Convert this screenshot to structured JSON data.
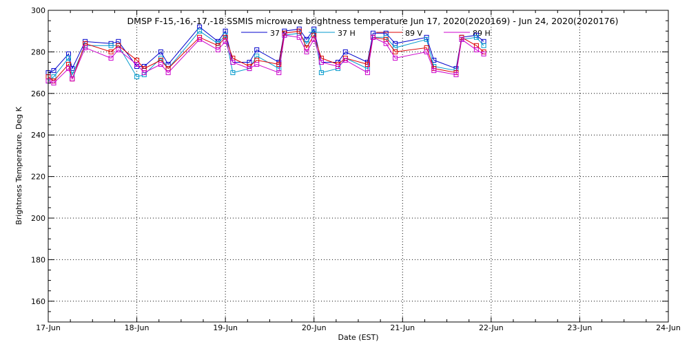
{
  "chart_data": {
    "type": "line",
    "title": "DMSP F-15,-16,-17,-18 SSMIS microwave brightness temperature Jun 17, 2020(2020169) - Jun 24, 2020(2020176)",
    "xlabel": "Date (EST)",
    "ylabel": "Brightness Temperature, Deg K",
    "xlim": [
      "2020-06-17",
      "2020-06-24"
    ],
    "ylim": [
      150,
      300
    ],
    "x_ticks": [
      "17-Jun",
      "18-Jun",
      "19-Jun",
      "20-Jun",
      "21-Jun",
      "22-Jun",
      "23-Jun",
      "24-Jun"
    ],
    "y_ticks": [
      "160",
      "180",
      "200",
      "220",
      "240",
      "260",
      "280",
      "300"
    ],
    "grid": true,
    "legend_position": "top",
    "x_times": [
      "2020-06-17 00:00",
      "2020-06-17 01:30",
      "2020-06-17 05:30",
      "2020-06-17 06:30",
      "2020-06-17 10:00",
      "2020-06-17 17:00",
      "2020-06-17 19:00",
      "2020-06-18 00:00",
      "2020-06-18 02:00",
      "2020-06-18 06:30",
      "2020-06-18 08:30",
      "2020-06-18 17:00",
      "2020-06-18 22:00",
      "2020-06-19 00:00",
      "2020-06-19 02:00",
      "2020-06-19 06:30",
      "2020-06-19 08:30",
      "2020-06-19 14:30",
      "2020-06-19 16:00",
      "2020-06-19 20:00",
      "2020-06-19 22:00",
      "2020-06-20 00:00",
      "2020-06-20 02:00",
      "2020-06-20 06:30",
      "2020-06-20 08:30",
      "2020-06-20 14:30",
      "2020-06-20 16:00",
      "2020-06-20 19:30",
      "2020-06-20 22:00",
      "2020-06-21 06:30",
      "2020-06-21 08:30",
      "2020-06-21 14:30",
      "2020-06-21 16:00",
      "2020-06-21 20:00",
      "2020-06-21 22:00"
    ],
    "series": [
      {
        "name": "37 V",
        "color": "#0000cc",
        "values": [
          270,
          271,
          279,
          272,
          285,
          284,
          285,
          273,
          273,
          280,
          274,
          292,
          285,
          290,
          275,
          275,
          281,
          275,
          290,
          291,
          286,
          291,
          275,
          275,
          280,
          275,
          289,
          289,
          284,
          287,
          276,
          272,
          287,
          288,
          285
        ]
      },
      {
        "name": "37 H",
        "color": "#0099cc",
        "values": [
          266,
          268,
          277,
          269,
          283,
          283,
          283,
          268,
          269,
          277,
          272,
          290,
          284,
          288,
          270,
          272,
          278,
          272,
          288,
          289,
          284,
          290,
          270,
          272,
          277,
          272,
          287,
          287,
          282,
          286,
          273,
          271,
          286,
          287,
          283
        ]
      },
      {
        "name": "89 V",
        "color": "#dd0000",
        "values": [
          268,
          266,
          274,
          267,
          284,
          280,
          283,
          276,
          272,
          276,
          272,
          287,
          283,
          287,
          277,
          273,
          276,
          274,
          289,
          290,
          282,
          288,
          277,
          274,
          277,
          274,
          287,
          286,
          280,
          282,
          272,
          270,
          287,
          283,
          280
        ]
      },
      {
        "name": "89 H",
        "color": "#cc00cc",
        "values": [
          266,
          265,
          272,
          267,
          282,
          277,
          281,
          274,
          270,
          274,
          270,
          286,
          281,
          285,
          275,
          272,
          274,
          270,
          288,
          287,
          280,
          286,
          275,
          273,
          276,
          270,
          287,
          284,
          277,
          280,
          271,
          269,
          286,
          281,
          279
        ]
      }
    ]
  }
}
